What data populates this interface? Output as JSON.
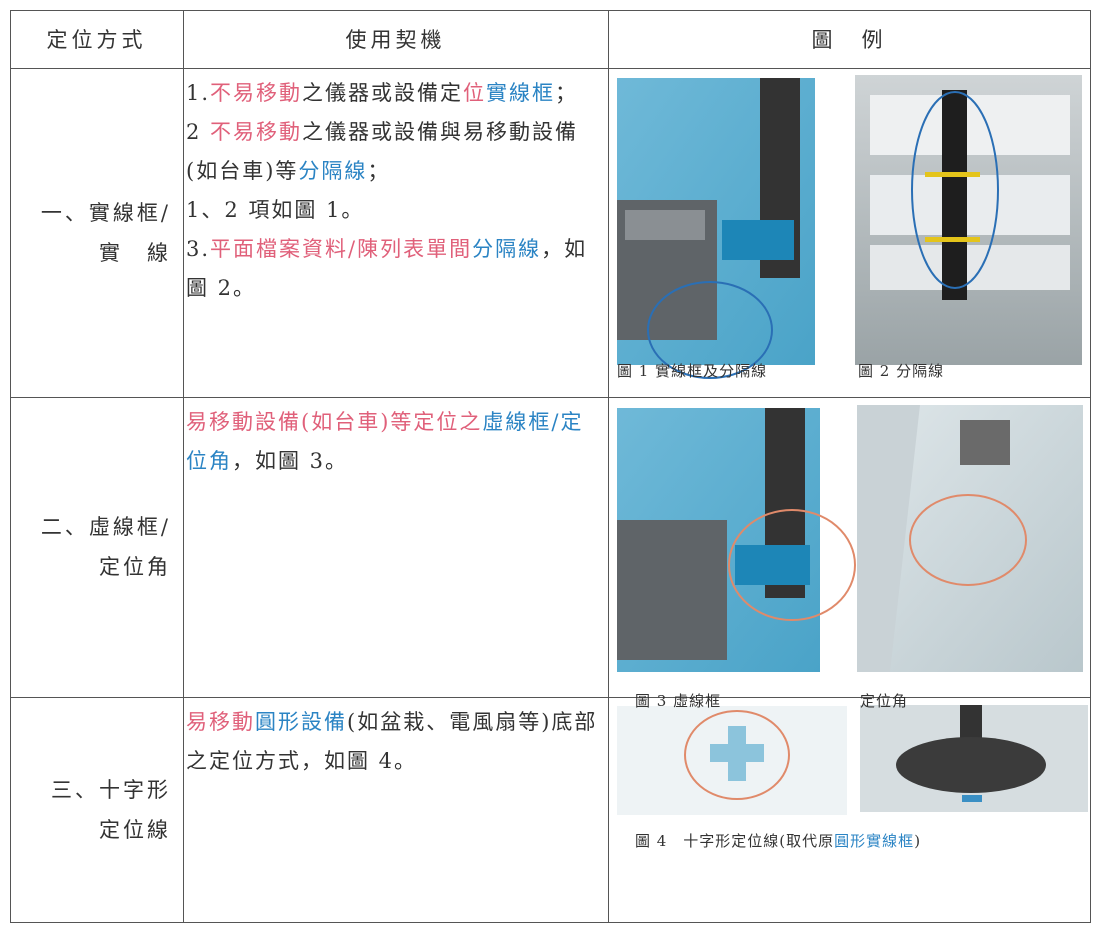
{
  "table": {
    "header": [
      "定位方式",
      "使用契機",
      "圖　例"
    ],
    "rows": [
      {
        "method": [
          "一、實線框/",
          "實　線"
        ],
        "usage": [
          [
            {
              "text": "1.",
              "color": "#333333"
            },
            {
              "text": "不易移動",
              "color": "#e0607a"
            },
            {
              "text": "之儀器或設備定",
              "color": "#333333"
            },
            {
              "text": "位",
              "color": "#e0607a"
            },
            {
              "text": "實線框",
              "color": "#2b84c4"
            },
            {
              "text": "；",
              "color": "#333333"
            }
          ],
          [
            {
              "text": "2 ",
              "color": "#333333"
            },
            {
              "text": "不易移動",
              "color": "#e0607a"
            },
            {
              "text": "之儀器或設備與易移動設備(如台車)等",
              "color": "#333333"
            },
            {
              "text": "分隔線",
              "color": "#2b84c4"
            },
            {
              "text": "；",
              "color": "#333333"
            }
          ],
          [
            {
              "text": "1、2 項如圖 1。",
              "color": "#333333"
            }
          ],
          [
            {
              "text": "3.",
              "color": "#333333"
            },
            {
              "text": "平面檔案資料/陳列表單間",
              "color": "#e0607a"
            },
            {
              "text": "分隔線",
              "color": "#2b84c4"
            },
            {
              "text": "，如圖 2。",
              "color": "#333333"
            }
          ]
        ],
        "captions": [
          [
            {
              "text": "圖 1 實線框及分隔線",
              "color": "#333333"
            }
          ],
          [
            {
              "text": "圖 2 分隔線",
              "color": "#333333"
            }
          ]
        ]
      },
      {
        "method": [
          "二、虛線框/",
          "定位角"
        ],
        "usage": [
          [
            {
              "text": "易移動設備(如台車)等定位之",
              "color": "#e0607a"
            },
            {
              "text": "虛線框/定位角",
              "color": "#2b84c4"
            },
            {
              "text": "，如圖 3。",
              "color": "#333333"
            }
          ]
        ],
        "captions": [
          [
            {
              "text": "圖 3 虛線框",
              "color": "#333333"
            }
          ],
          [
            {
              "text": "定位角",
              "color": "#333333"
            }
          ]
        ]
      },
      {
        "method": [
          "三、十字形",
          "定位線"
        ],
        "usage": [
          [
            {
              "text": "易移動",
              "color": "#e0607a"
            },
            {
              "text": "圓形設備",
              "color": "#2b84c4"
            },
            {
              "text": "(如盆栽、電風扇等)底部之定位方式，如圖 4。",
              "color": "#333333"
            }
          ]
        ],
        "captions": [
          [
            {
              "text": "圖 4　十字形定位線(取代原",
              "color": "#333333"
            },
            {
              "text": "圓形實線框",
              "color": "#2b84c4"
            },
            {
              "text": ")",
              "color": "#333333"
            }
          ]
        ]
      }
    ]
  }
}
